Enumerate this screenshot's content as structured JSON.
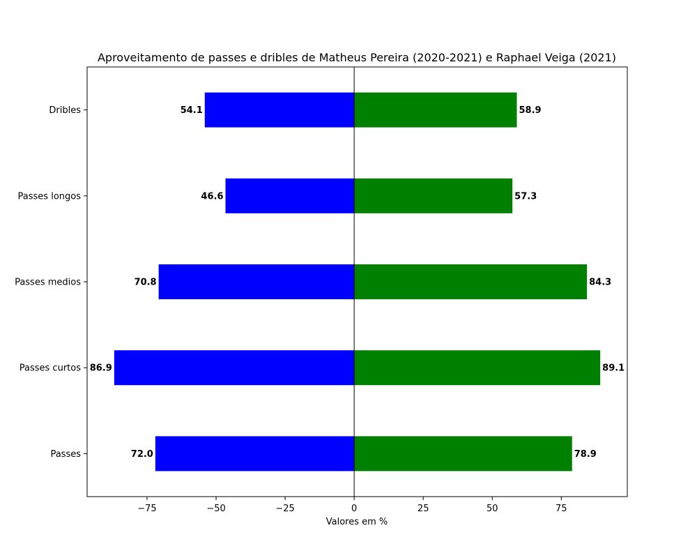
{
  "chart_data": {
    "type": "bar",
    "orientation": "horizontal",
    "title": "Aproveitamento de passes e dribles de Matheus Pereira (2020-2021) e Raphael Veiga (2021)",
    "xlabel": "Valores em %",
    "ylabel": "",
    "categories": [
      "Passes",
      "Passes curtos",
      "Passes medios",
      "Passes longos",
      "Dribles"
    ],
    "series": [
      {
        "color": "#0000ff",
        "values": [
          -72.0,
          -86.9,
          -70.8,
          -46.6,
          -54.1
        ],
        "labels": [
          "72.0",
          "86.9",
          "70.8",
          "46.6",
          "54.1"
        ]
      },
      {
        "color": "#008000",
        "values": [
          78.9,
          89.1,
          84.3,
          57.3,
          58.9
        ],
        "labels": [
          "78.9",
          "89.1",
          "84.3",
          "57.3",
          "58.9"
        ]
      }
    ],
    "xlim": [
      -96.7,
      98.9
    ],
    "xticks": [
      -75,
      -50,
      -25,
      0,
      25,
      50,
      75
    ],
    "xtick_labels": [
      "−75",
      "−50",
      "−25",
      "0",
      "25",
      "50",
      "75"
    ],
    "zero_line": true,
    "grid": false,
    "legend": "none"
  }
}
